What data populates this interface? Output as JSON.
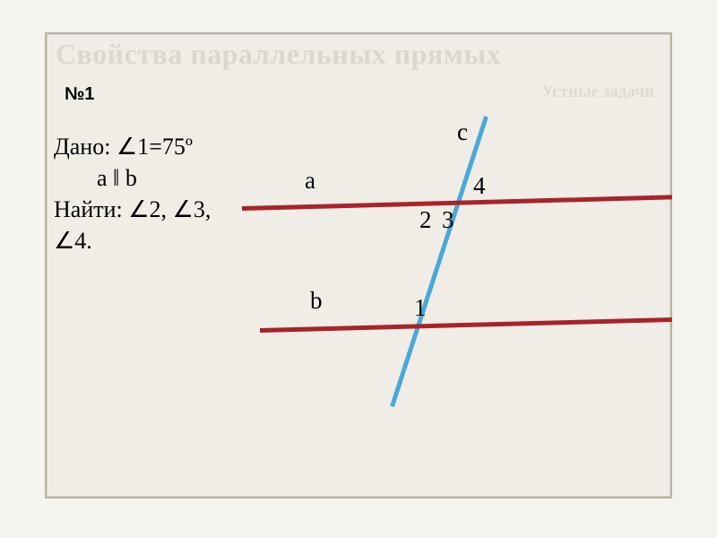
{
  "title": "Свойства параллельных прямых",
  "subtitle": "Устные задачи",
  "problem_number": "№1",
  "given_line1": "Дано: ∠1=75º",
  "given_line2": "a ‖ b",
  "find_line1": "Найти: ∠2, ∠3,",
  "find_line2": "∠4.",
  "labels": {
    "a": "a",
    "b": "b",
    "c": "c",
    "n1": "1",
    "n2": "2",
    "n3": "3",
    "n4": "4"
  },
  "style": {
    "background": "#f5f3ee",
    "frame_bg": "#efede6",
    "frame_border": "#b8b4a8",
    "title_color": "#d9d7ce",
    "subtitle_color": "#dcdad1",
    "parallel_line_color": "#a8232a",
    "transversal_color": "#4aa8d8",
    "text_color": "#000000",
    "title_fontsize": 32,
    "subtitle_fontsize": 19,
    "problem_fontsize": 26,
    "label_fontsize": 27,
    "line_width": 5
  }
}
